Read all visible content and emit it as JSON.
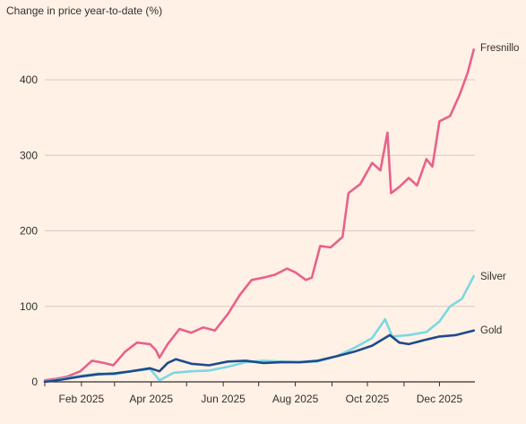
{
  "chart_data": {
    "type": "line",
    "title": "Change in price year-to-date (%)",
    "xlabel": "",
    "ylabel": "",
    "x_ticks": [
      "Feb 2025",
      "Apr 2025",
      "Jun 2025",
      "Aug 2025",
      "Oct 2025",
      "Dec 2025"
    ],
    "y_ticks": [
      0,
      100,
      200,
      300,
      400
    ],
    "ylim": [
      0,
      440
    ],
    "xlim": [
      "2025-01-01",
      "2025-12-31"
    ],
    "grid": "horizontal",
    "legend": "direct labels at line ends (right)",
    "series": [
      {
        "name": "Fresnillo",
        "color": "#e8618c",
        "points": [
          [
            "2025-01-01",
            2
          ],
          [
            "2025-01-10",
            4
          ],
          [
            "2025-01-20",
            7
          ],
          [
            "2025-01-31",
            14
          ],
          [
            "2025-02-10",
            28
          ],
          [
            "2025-02-20",
            25
          ],
          [
            "2025-02-28",
            22
          ],
          [
            "2025-03-10",
            40
          ],
          [
            "2025-03-20",
            52
          ],
          [
            "2025-03-31",
            50
          ],
          [
            "2025-04-05",
            42
          ],
          [
            "2025-04-08",
            32
          ],
          [
            "2025-04-15",
            50
          ],
          [
            "2025-04-25",
            70
          ],
          [
            "2025-05-05",
            65
          ],
          [
            "2025-05-15",
            72
          ],
          [
            "2025-05-25",
            68
          ],
          [
            "2025-06-05",
            90
          ],
          [
            "2025-06-15",
            115
          ],
          [
            "2025-06-25",
            135
          ],
          [
            "2025-07-05",
            138
          ],
          [
            "2025-07-15",
            142
          ],
          [
            "2025-07-25",
            150
          ],
          [
            "2025-08-01",
            145
          ],
          [
            "2025-08-10",
            135
          ],
          [
            "2025-08-15",
            138
          ],
          [
            "2025-08-22",
            180
          ],
          [
            "2025-08-31",
            178
          ],
          [
            "2025-09-10",
            192
          ],
          [
            "2025-09-15",
            250
          ],
          [
            "2025-09-25",
            262
          ],
          [
            "2025-10-05",
            290
          ],
          [
            "2025-10-12",
            280
          ],
          [
            "2025-10-18",
            330
          ],
          [
            "2025-10-21",
            250
          ],
          [
            "2025-10-28",
            258
          ],
          [
            "2025-11-05",
            270
          ],
          [
            "2025-11-12",
            260
          ],
          [
            "2025-11-20",
            295
          ],
          [
            "2025-11-25",
            285
          ],
          [
            "2025-12-01",
            345
          ],
          [
            "2025-12-10",
            352
          ],
          [
            "2025-12-18",
            380
          ],
          [
            "2025-12-25",
            410
          ],
          [
            "2025-12-30",
            440
          ]
        ]
      },
      {
        "name": "Silver",
        "color": "#7ad8e3",
        "points": [
          [
            "2025-01-01",
            0
          ],
          [
            "2025-01-15",
            4
          ],
          [
            "2025-01-31",
            8
          ],
          [
            "2025-02-15",
            11
          ],
          [
            "2025-02-28",
            10
          ],
          [
            "2025-03-15",
            14
          ],
          [
            "2025-03-31",
            17
          ],
          [
            "2025-04-05",
            8
          ],
          [
            "2025-04-08",
            2
          ],
          [
            "2025-04-20",
            12
          ],
          [
            "2025-05-05",
            14
          ],
          [
            "2025-05-20",
            15
          ],
          [
            "2025-06-05",
            20
          ],
          [
            "2025-06-20",
            26
          ],
          [
            "2025-07-05",
            28
          ],
          [
            "2025-07-20",
            27
          ],
          [
            "2025-08-05",
            26
          ],
          [
            "2025-08-20",
            27
          ],
          [
            "2025-09-05",
            34
          ],
          [
            "2025-09-20",
            45
          ],
          [
            "2025-10-05",
            58
          ],
          [
            "2025-10-16",
            83
          ],
          [
            "2025-10-22",
            60
          ],
          [
            "2025-11-05",
            62
          ],
          [
            "2025-11-20",
            66
          ],
          [
            "2025-12-01",
            80
          ],
          [
            "2025-12-10",
            100
          ],
          [
            "2025-12-20",
            110
          ],
          [
            "2025-12-30",
            140
          ]
        ]
      },
      {
        "name": "Gold",
        "color": "#1e4a8c",
        "points": [
          [
            "2025-01-01",
            0
          ],
          [
            "2025-01-15",
            3
          ],
          [
            "2025-01-31",
            7
          ],
          [
            "2025-02-15",
            10
          ],
          [
            "2025-02-28",
            11
          ],
          [
            "2025-03-15",
            14
          ],
          [
            "2025-03-31",
            18
          ],
          [
            "2025-04-08",
            14
          ],
          [
            "2025-04-15",
            25
          ],
          [
            "2025-04-22",
            30
          ],
          [
            "2025-05-05",
            24
          ],
          [
            "2025-05-20",
            22
          ],
          [
            "2025-06-05",
            27
          ],
          [
            "2025-06-20",
            28
          ],
          [
            "2025-07-05",
            25
          ],
          [
            "2025-07-20",
            26
          ],
          [
            "2025-08-05",
            26
          ],
          [
            "2025-08-20",
            28
          ],
          [
            "2025-09-05",
            34
          ],
          [
            "2025-09-20",
            40
          ],
          [
            "2025-10-05",
            48
          ],
          [
            "2025-10-20",
            62
          ],
          [
            "2025-10-28",
            52
          ],
          [
            "2025-11-05",
            50
          ],
          [
            "2025-11-20",
            56
          ],
          [
            "2025-12-01",
            60
          ],
          [
            "2025-12-15",
            62
          ],
          [
            "2025-12-30",
            68
          ]
        ]
      }
    ]
  }
}
